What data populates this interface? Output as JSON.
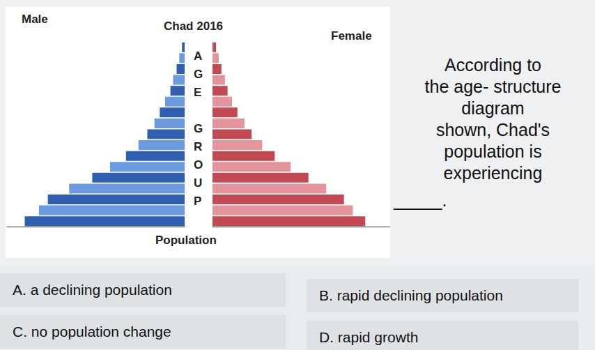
{
  "chart_data": {
    "type": "bar",
    "orientation": "horizontal",
    "title": "Chad 2016",
    "x_label": "Population",
    "y_label": "AGE GROUP",
    "categories": [
      null,
      null,
      null,
      null,
      null,
      null,
      null,
      null,
      null,
      null,
      null,
      null,
      null,
      null,
      null,
      null,
      null
    ],
    "series": [
      {
        "name": "Male",
        "values": [
          9.0,
          8.2,
          7.7,
          6.5,
          5.2,
          4.2,
          3.3,
          2.6,
          2.1,
          1.7,
          1.4,
          1.1,
          0.8,
          0.65,
          0.45,
          0.3,
          0.15
        ],
        "colors": [
          "#2f5fae",
          "#6d9be0",
          "#2f5fae",
          "#6d9be0",
          "#2f5fae",
          "#6d9be0",
          "#2f5fae",
          "#6d9be0",
          "#2f5fae",
          "#6d9be0",
          "#2f5fae",
          "#6d9be0",
          "#2f5fae",
          "#6d9be0",
          "#2f5fae",
          "#6d9be0",
          "#2f5fae"
        ]
      },
      {
        "name": "Female",
        "values": [
          8.6,
          7.9,
          7.4,
          6.4,
          5.4,
          4.4,
          3.5,
          2.8,
          2.2,
          1.8,
          1.4,
          1.1,
          0.85,
          0.7,
          0.5,
          0.35,
          0.2
        ],
        "colors": [
          "#c24a55",
          "#e4959c",
          "#c24a55",
          "#e4959c",
          "#c24a55",
          "#e4959c",
          "#c24a55",
          "#e4959c",
          "#c24a55",
          "#e4959c",
          "#c24a55",
          "#e4959c",
          "#c24a55",
          "#e4959c",
          "#c24a55",
          "#e4959c",
          "#c24a55"
        ]
      }
    ],
    "xlim": [
      0,
      10
    ],
    "tick_labels": false,
    "grid": false
  },
  "question": {
    "lines": [
      "According to",
      "the age- structure",
      "diagram",
      "shown, Chad's",
      "population is",
      "experiencing"
    ],
    "blank": "_____."
  },
  "options": [
    "A. a declining population",
    "B. rapid declining population",
    "C. no population change",
    "D. rapid growth"
  ]
}
